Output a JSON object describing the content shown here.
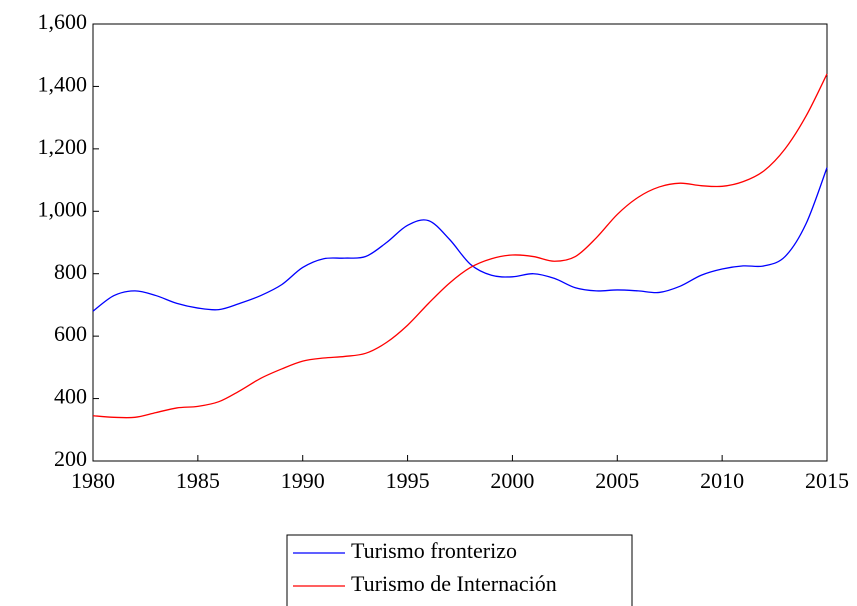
{
  "chart_data": {
    "type": "line",
    "x": [
      1980,
      1981,
      1982,
      1983,
      1984,
      1985,
      1986,
      1987,
      1988,
      1989,
      1990,
      1991,
      1992,
      1993,
      1994,
      1995,
      1996,
      1997,
      1998,
      1999,
      2000,
      2001,
      2002,
      2003,
      2004,
      2005,
      2006,
      2007,
      2008,
      2009,
      2010,
      2011,
      2012,
      2013,
      2014,
      2015
    ],
    "series": [
      {
        "name": "Turismo fronterizo",
        "color": "#0000ff",
        "values": [
          680,
          730,
          745,
          730,
          705,
          690,
          685,
          705,
          730,
          765,
          820,
          848,
          850,
          855,
          900,
          955,
          970,
          910,
          830,
          795,
          790,
          800,
          785,
          755,
          745,
          748,
          745,
          740,
          760,
          795,
          815,
          825,
          825,
          855,
          960,
          1140
        ]
      },
      {
        "name": "Turismo de Internación",
        "color": "#ff0000",
        "values": [
          345,
          340,
          340,
          355,
          370,
          375,
          390,
          425,
          465,
          495,
          520,
          530,
          535,
          545,
          580,
          635,
          705,
          770,
          820,
          848,
          860,
          855,
          840,
          855,
          915,
          990,
          1045,
          1078,
          1090,
          1082,
          1080,
          1095,
          1130,
          1200,
          1305,
          1440
        ]
      }
    ],
    "xlim": [
      1980,
      2015
    ],
    "xticks": [
      1980,
      1985,
      1990,
      1995,
      2000,
      2005,
      2010,
      2015
    ],
    "ylim": [
      200,
      1600
    ],
    "yticks": [
      200,
      400,
      600,
      800,
      {
        "value": 1000,
        "label": "1,000"
      },
      {
        "value": 1200,
        "label": "1,200"
      },
      {
        "value": 1400,
        "label": "1,400"
      },
      {
        "value": 1600,
        "label": "1,600"
      }
    ],
    "legend": "bottom"
  }
}
